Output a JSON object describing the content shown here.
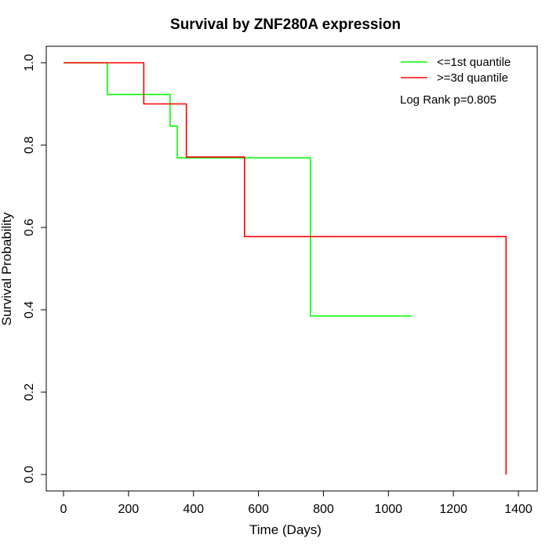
{
  "chart_data": {
    "type": "line",
    "subtype": "kaplan-meier-step",
    "title": "Survival by ZNF280A expression",
    "xlabel": "Time (Days)",
    "ylabel": "Survival Probability",
    "xlim": [
      0,
      1400
    ],
    "ylim": [
      0,
      1
    ],
    "x_ticks": [
      0,
      200,
      400,
      600,
      800,
      1000,
      1200,
      1400
    ],
    "y_ticks": [
      0.0,
      0.2,
      0.4,
      0.6,
      0.8,
      1.0
    ],
    "x_tick_labels": [
      "0",
      "200",
      "400",
      "600",
      "800",
      "1000",
      "1200",
      "1400"
    ],
    "y_tick_labels": [
      "0.0",
      "0.2",
      "0.4",
      "0.6",
      "0.8",
      "1.0"
    ],
    "grid": false,
    "legend_position": "top-right",
    "annotation": "Log Rank p=0.805",
    "series": [
      {
        "name": "<=1st quantile",
        "color": "#00ff00",
        "x": [
          0,
          135,
          328,
          350,
          760,
          1072
        ],
        "y": [
          1.0,
          0.923,
          0.846,
          0.769,
          0.385,
          0.385
        ]
      },
      {
        "name": ">=3d quantile",
        "color": "#ff0000",
        "x": [
          0,
          247,
          378,
          557,
          1362,
          1362
        ],
        "y": [
          1.0,
          0.9,
          0.771,
          0.578,
          0.578,
          0.0
        ]
      }
    ]
  }
}
